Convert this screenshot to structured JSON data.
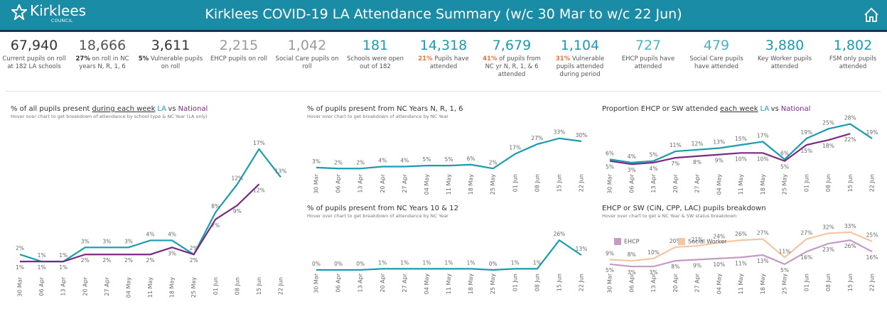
{
  "header": {
    "logo": "Kirklees",
    "logo_sub": "COUNCIL",
    "title": "Kirklees COVID-19 LA Attendance Summary (w/c 30 Mar to w/c 22 Jun)"
  },
  "kpis": [
    {
      "value": "67,940",
      "color": "#333333",
      "label": "Current pupils on roll at 182 LA schools"
    },
    {
      "value": "18,666",
      "color": "#555555",
      "highlight": "27%",
      "highlight_color": "#333333",
      "label": "on roll in NC years N, R, 1, 6"
    },
    {
      "value": "3,611",
      "color": "#333333",
      "highlight": "5%",
      "highlight_color": "#333333",
      "label": "Vulnerable pupils on roll"
    },
    {
      "value": "2,215",
      "color": "#9a9a9a",
      "label": "EHCP pupils on roll"
    },
    {
      "value": "1,042",
      "color": "#9a9a9a",
      "label": "Social Care pupils on roll"
    },
    {
      "value": "181",
      "color": "#1a9bb0",
      "label": "Schools were open out of 182"
    },
    {
      "value": "14,318",
      "color": "#1a9bb0",
      "highlight": "21%",
      "highlight_color": "#e8743b",
      "label": "Pupils have attended"
    },
    {
      "value": "7,679",
      "color": "#1a9bb0",
      "highlight": "41%",
      "highlight_color": "#e8743b",
      "label": "of pupils from NC yr N, R, 1, & 6 attended"
    },
    {
      "value": "1,104",
      "color": "#1a9bb0",
      "highlight": "31%",
      "highlight_color": "#e8743b",
      "label": "Vulnerable pupils attended during period"
    },
    {
      "value": "727",
      "color": "#4bb3c3",
      "label": "EHCP pupils have attended"
    },
    {
      "value": "479",
      "color": "#4bb3c3",
      "label": "Social Care pupils have attended"
    },
    {
      "value": "3,880",
      "color": "#1a9bb0",
      "label": "Key Worker pupils attended"
    },
    {
      "value": "1,802",
      "color": "#1a9bb0",
      "label": "FSM only pupils attended"
    }
  ],
  "chart_data": [
    {
      "type": "line",
      "title": [
        {
          "text": "% of all pupils present"
        },
        {
          "text": "during each week",
          "style": "underline"
        },
        {
          "text": "LA",
          "color": "#1a9bb0"
        },
        {
          "text": "vs"
        },
        {
          "text": "National",
          "color": "#7b2a83"
        }
      ],
      "subtitle": "Hover over chart to get breakdown of attendance by school type & NC Year (LA only)",
      "categories": [
        "30 Mar",
        "06 Apr",
        "13 Apr",
        "20 Apr",
        "27 Apr",
        "04 May",
        "11 May",
        "18 May",
        "25 May",
        "01 Jun",
        "08 Jun",
        "15 Jun",
        "22 Jun"
      ],
      "ylim": [
        0,
        18
      ],
      "series": [
        {
          "color": "#1a9bb0",
          "values": [
            2,
            1,
            1,
            3,
            3,
            3,
            4,
            4,
            2,
            8,
            12,
            17,
            13
          ],
          "value_labels": [
            "2%",
            "1%",
            "1%",
            "3%",
            "3%",
            "3%",
            "4%",
            "4%",
            "2%",
            "8%",
            "12%",
            "17%",
            "13%"
          ]
        },
        {
          "color": "#7b2a83",
          "values": [
            1,
            1,
            1,
            2,
            2,
            2,
            2,
            3,
            2,
            7,
            9,
            12,
            null
          ],
          "value_labels": [
            "1%",
            "1%",
            "1%",
            "2%",
            "2%",
            "2%",
            "2%",
            "3%",
            "2%",
            "7%",
            "9%",
            "12%",
            null
          ]
        }
      ]
    },
    {
      "type": "line",
      "title": [
        {
          "text": "% of pupils present from NC Years N, R, 1, 6"
        }
      ],
      "subtitle": "Hover over chart to get breakdown of attendance by NC Year",
      "categories": [
        "30 Mar",
        "06 Apr",
        "13 Apr",
        "20 Apr",
        "27 Apr",
        "04 May",
        "11 May",
        "18 May",
        "25 May",
        "01 Jun",
        "08 Jun",
        "15 Jun",
        "22 Jun"
      ],
      "ylim": [
        0,
        35
      ],
      "series": [
        {
          "color": "#1a9bb0",
          "values": [
            3,
            2,
            2,
            4,
            4,
            5,
            5,
            6,
            2,
            17,
            27,
            33,
            30
          ],
          "value_labels": [
            "3%",
            "2%",
            "2%",
            "4%",
            "4%",
            "5%",
            "5%",
            "6%",
            "2%",
            "17%",
            "27%",
            "33%",
            "30%"
          ]
        }
      ]
    },
    {
      "type": "line",
      "title": [
        {
          "text": "% of pupils present from NC Years 10 & 12"
        }
      ],
      "subtitle": "Hover over chart to get breakdown of attendance by NC Year",
      "categories": [
        "30 Mar",
        "06 Apr",
        "13 Apr",
        "20 Apr",
        "27 Apr",
        "04 May",
        "11 May",
        "18 May",
        "25 May",
        "01 Jun",
        "08 Jun",
        "15 Jun",
        "22 Jun"
      ],
      "ylim": [
        0,
        28
      ],
      "series": [
        {
          "color": "#1a9bb0",
          "values": [
            0,
            0,
            0,
            1,
            1,
            1,
            1,
            1,
            0,
            1,
            1,
            26,
            13
          ],
          "value_labels": [
            "0%",
            "0%",
            "0%",
            "1%",
            "1%",
            "1%",
            "1%",
            "1%",
            "0%",
            "1%",
            "1%",
            "26%",
            "13%"
          ]
        }
      ]
    },
    {
      "type": "line",
      "title": [
        {
          "text": "Proportion EHCP or SW attended"
        },
        {
          "text": "each week",
          "style": "underline"
        },
        {
          "text": "LA",
          "color": "#1a9bb0"
        },
        {
          "text": "vs"
        },
        {
          "text": "National",
          "color": "#7b2a83"
        }
      ],
      "categories": [
        "30 Mar",
        "06 Apr",
        "13 Apr",
        "20 Apr",
        "27 Apr",
        "04 May",
        "11 May",
        "18 May",
        "25 May",
        "01 Jun",
        "08 Jun",
        "15 Jun",
        "22 Jun"
      ],
      "ylim": [
        0,
        30
      ],
      "series": [
        {
          "color": "#1a9bb0",
          "values": [
            6,
            4,
            5,
            11,
            12,
            13,
            15,
            17,
            6,
            19,
            25,
            28,
            19
          ],
          "value_labels": [
            "6%",
            "4%",
            "5%",
            "11%",
            "12%",
            "13%",
            "15%",
            "17%",
            "6%",
            "19%",
            "25%",
            "28%",
            "19%"
          ]
        },
        {
          "color": "#7b2a83",
          "values": [
            5,
            3,
            4,
            7,
            8,
            9,
            10,
            10,
            5,
            15,
            18,
            22,
            null
          ],
          "value_labels": [
            "5%",
            "3%",
            "4%",
            "7%",
            "8%",
            "9%",
            "10%",
            "10%",
            "5%",
            "15%",
            "18%",
            "22%",
            null
          ]
        }
      ]
    },
    {
      "type": "line",
      "title": [
        {
          "text": "EHCP or SW (CiN, CPP, LAC) pupils breakdown"
        }
      ],
      "subtitle": "Hover over chart to get a NC Year & SW status breakdown",
      "categories": [
        "30 Mar",
        "06 Apr",
        "13 Apr",
        "20 Apr",
        "27 Apr",
        "04 May",
        "11 May",
        "18 May",
        "25 May",
        "01 Jun",
        "08 Jun",
        "15 Jun",
        "22 Jun"
      ],
      "ylim": [
        0,
        36
      ],
      "legend": "top-left",
      "series": [
        {
          "name": "Social Worker",
          "color": "#f4c6a4",
          "values": [
            9,
            8,
            10,
            20,
            21,
            24,
            26,
            27,
            11,
            27,
            32,
            33,
            25
          ],
          "value_labels": [
            "9%",
            "8%",
            "10%",
            "20%",
            "21%",
            "24%",
            "26%",
            "27%",
            "11%",
            "27%",
            "32%",
            "33%",
            "25%"
          ]
        },
        {
          "name": "EHCP",
          "color": "#c39bc4",
          "values": [
            5,
            3,
            3,
            8,
            9,
            10,
            11,
            13,
            5,
            16,
            23,
            26,
            16
          ],
          "value_labels": [
            "5%",
            "3%",
            "3%",
            "8%",
            "9%",
            "10%",
            "11%",
            "13%",
            "5%",
            "16%",
            "23%",
            "26%",
            "16%"
          ]
        }
      ]
    }
  ]
}
